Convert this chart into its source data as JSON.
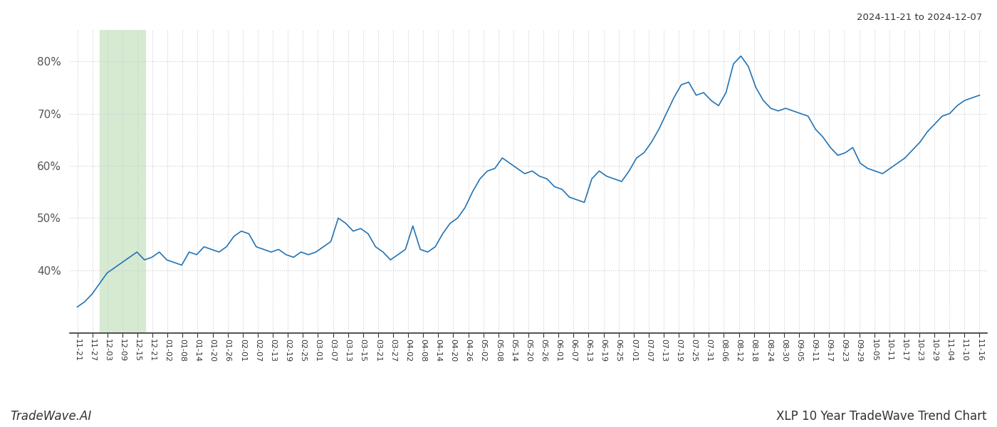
{
  "title_top_right": "2024-11-21 to 2024-12-07",
  "bottom_left_text": "TradeWave.AI",
  "bottom_right_text": "XLP 10 Year TradeWave Trend Chart",
  "line_color": "#2374b5",
  "grid_color": "#cccccc",
  "highlight_color": "#d6ead2",
  "ylim": [
    28,
    86
  ],
  "yticks": [
    40,
    50,
    60,
    70,
    80
  ],
  "x_labels": [
    "11-21",
    "11-27",
    "12-03",
    "12-09",
    "12-15",
    "12-21",
    "01-02",
    "01-08",
    "01-14",
    "01-20",
    "01-26",
    "02-01",
    "02-07",
    "02-13",
    "02-19",
    "02-25",
    "03-01",
    "03-07",
    "03-13",
    "03-15",
    "03-21",
    "03-27",
    "04-02",
    "04-08",
    "04-14",
    "04-20",
    "04-26",
    "05-02",
    "05-08",
    "05-14",
    "05-20",
    "05-26",
    "06-01",
    "06-07",
    "06-13",
    "06-19",
    "06-25",
    "07-01",
    "07-07",
    "07-13",
    "07-19",
    "07-25",
    "07-31",
    "08-06",
    "08-12",
    "08-18",
    "08-24",
    "08-30",
    "09-05",
    "09-11",
    "09-17",
    "09-23",
    "09-29",
    "10-05",
    "10-11",
    "10-17",
    "10-23",
    "10-29",
    "11-04",
    "11-10",
    "11-16"
  ],
  "highlight_label_start": "12-03",
  "highlight_label_end": "12-15",
  "y_values": [
    33.0,
    34.0,
    35.5,
    37.5,
    39.5,
    40.5,
    41.5,
    42.5,
    43.5,
    42.0,
    42.5,
    43.5,
    42.0,
    41.5,
    41.0,
    43.5,
    43.0,
    44.5,
    44.0,
    43.5,
    44.5,
    46.5,
    47.5,
    47.0,
    44.5,
    44.0,
    43.5,
    44.0,
    43.0,
    42.5,
    43.5,
    43.0,
    43.5,
    44.5,
    45.5,
    50.0,
    49.0,
    47.5,
    48.0,
    47.0,
    44.5,
    43.5,
    42.0,
    43.0,
    44.0,
    48.5,
    44.0,
    43.5,
    44.5,
    47.0,
    49.0,
    50.0,
    52.0,
    55.0,
    57.5,
    59.0,
    59.5,
    61.5,
    60.5,
    59.5,
    58.5,
    59.0,
    58.0,
    57.5,
    56.0,
    55.5,
    54.0,
    53.5,
    53.0,
    57.5,
    59.0,
    58.0,
    57.5,
    57.0,
    59.0,
    61.5,
    62.5,
    64.5,
    67.0,
    70.0,
    73.0,
    75.5,
    76.0,
    73.5,
    74.0,
    72.5,
    71.5,
    74.0,
    79.5,
    81.0,
    79.0,
    75.0,
    72.5,
    71.0,
    70.5,
    71.0,
    70.5,
    70.0,
    69.5,
    67.0,
    65.5,
    63.5,
    62.0,
    62.5,
    63.5,
    60.5,
    59.5,
    59.0,
    58.5,
    59.5,
    60.5,
    61.5,
    63.0,
    64.5,
    66.5,
    68.0,
    69.5,
    70.0,
    71.5,
    72.5,
    73.0,
    73.5
  ],
  "background_color": "#ffffff"
}
